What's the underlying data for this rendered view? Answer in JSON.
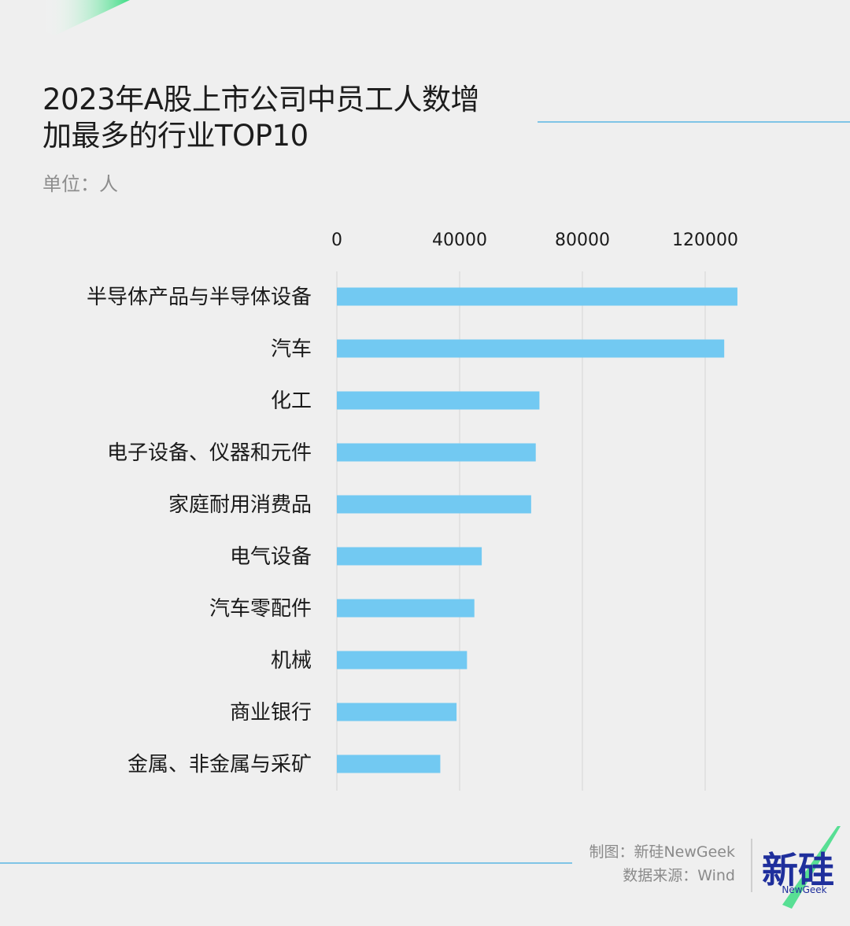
{
  "title_lines": [
    "2023年A股上市公司中员工人数增",
    "加最多的行业TOP10"
  ],
  "unit_label": "单位：人",
  "credits": {
    "made_by": "制图：新硅NewGeek",
    "source": "数据来源：Wind"
  },
  "logo": {
    "main_text": "新硅",
    "sub_text": "NewGeek"
  },
  "colors": {
    "bar": "#72c9f2",
    "grid": "#d6d6d6",
    "accent_line": "#7fc4e6",
    "logo_blue": "#1f2f9c",
    "logo_green": "#3ddc84"
  },
  "chart_data": {
    "type": "bar",
    "orientation": "horizontal",
    "categories": [
      "半导体产品与半导体设备",
      "汽车",
      "化工",
      "电子设备、仪器和元件",
      "家庭耐用消费品",
      "电气设备",
      "汽车零配件",
      "机械",
      "商业银行",
      "金属、非金属与采矿"
    ],
    "values": [
      130500,
      126200,
      66000,
      64800,
      63300,
      47200,
      44800,
      42400,
      39000,
      33700
    ],
    "xlim": [
      0,
      130000
    ],
    "xticks": [
      0,
      40000,
      80000,
      120000
    ],
    "xtick_labels": [
      "0",
      "40000",
      "80000",
      "120000"
    ],
    "xaxis_position": "top",
    "grid": true,
    "legend": "none",
    "title": "2023年A股上市公司中员工人数增加最多的行业TOP10",
    "xlabel": "",
    "ylabel": ""
  }
}
